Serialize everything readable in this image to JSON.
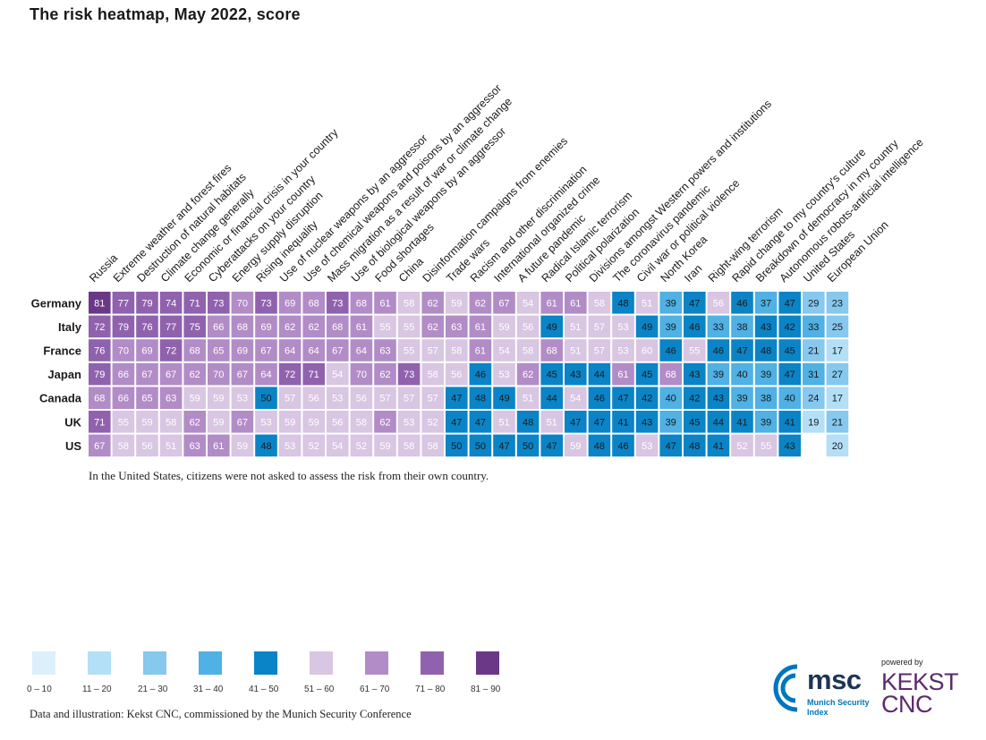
{
  "title": "The risk heatmap, May 2022, score",
  "note": "In the United States, citizens were not asked to assess the risk from their own country.",
  "source": "Data and illustration: Kekst CNC, commissioned by the Munich Security Conference",
  "powered_by": "powered by",
  "msc_logo": {
    "text": "msc",
    "sub1": "Munich Security",
    "sub2": "Index"
  },
  "kekst_logo": {
    "line1": "KEKST",
    "line2": "CNC"
  },
  "legend": [
    {
      "label": "0 – 10",
      "color": "#dceffb"
    },
    {
      "label": "11 – 20",
      "color": "#b3dff7"
    },
    {
      "label": "21 – 30",
      "color": "#86c8ee"
    },
    {
      "label": "31 – 40",
      "color": "#4fb1e4"
    },
    {
      "label": "41 – 50",
      "color": "#0a84c6"
    },
    {
      "label": "51 – 60",
      "color": "#d8c6e2"
    },
    {
      "label": "61 – 70",
      "color": "#b28cc6"
    },
    {
      "label": "71 – 80",
      "color": "#9062ae"
    },
    {
      "label": "81 – 90",
      "color": "#6b3888"
    }
  ],
  "chart_data": {
    "type": "heatmap",
    "title": "The risk heatmap, May 2022, score",
    "rows": [
      "Germany",
      "Italy",
      "France",
      "Japan",
      "Canada",
      "UK",
      "US"
    ],
    "columns": [
      "Russia",
      "Extreme weather and forest fires",
      "Destruction of natural habitats",
      "Climate change generally",
      "Economic or financial crisis in your country",
      "Cyberattacks on your country",
      "Energy supply disruption",
      "Rising inequality",
      "Use of nuclear weapons by an aggressor",
      "Use of chemical weapons and poisons by an aggressor",
      "Mass migration as a result of war or climate change",
      "Use of biological weapons by an aggressor",
      "Food shortages",
      "China",
      "Disinformation campaigns from enemies",
      "Trade wars",
      "Racism and other discrimination",
      "International organized crime",
      "A future pandemic",
      "Radical Islamic terrorism",
      "Political polarization",
      "Divisions amongst Western powers and institutions",
      "The coronavirus pandemic",
      "Civil war or political violence",
      "North Korea",
      "Iran",
      "Right-wing terrorism",
      "Rapid change to my country's culture",
      "Breakdown of democracy in my country",
      "Autonomous robots-artificial intelligence",
      "United States",
      "European Union"
    ],
    "values": [
      [
        81,
        77,
        79,
        74,
        71,
        73,
        70,
        73,
        69,
        68,
        73,
        68,
        61,
        58,
        62,
        59,
        62,
        67,
        54,
        61,
        61,
        58,
        48,
        51,
        39,
        47,
        56,
        46,
        37,
        47,
        29,
        23
      ],
      [
        72,
        79,
        76,
        77,
        75,
        66,
        68,
        69,
        62,
        62,
        68,
        61,
        55,
        55,
        62,
        63,
        61,
        59,
        56,
        49,
        51,
        57,
        53,
        49,
        39,
        46,
        33,
        38,
        43,
        42,
        33,
        25
      ],
      [
        76,
        70,
        69,
        72,
        68,
        65,
        69,
        67,
        64,
        64,
        67,
        64,
        63,
        55,
        57,
        58,
        61,
        54,
        58,
        68,
        51,
        57,
        53,
        60,
        46,
        55,
        46,
        47,
        48,
        45,
        21,
        17
      ],
      [
        79,
        66,
        67,
        67,
        62,
        70,
        67,
        64,
        72,
        71,
        54,
        70,
        62,
        73,
        58,
        56,
        46,
        53,
        62,
        45,
        43,
        44,
        61,
        45,
        68,
        43,
        39,
        40,
        39,
        47,
        31,
        27
      ],
      [
        68,
        66,
        65,
        63,
        59,
        59,
        53,
        50,
        57,
        56,
        53,
        56,
        57,
        57,
        57,
        47,
        48,
        49,
        51,
        44,
        54,
        46,
        47,
        42,
        40,
        42,
        43,
        39,
        38,
        40,
        24,
        17
      ],
      [
        71,
        55,
        59,
        58,
        62,
        59,
        67,
        53,
        59,
        59,
        56,
        58,
        62,
        53,
        52,
        47,
        47,
        51,
        48,
        51,
        47,
        47,
        41,
        43,
        39,
        45,
        44,
        41,
        39,
        41,
        19,
        21
      ],
      [
        67,
        58,
        56,
        51,
        63,
        61,
        59,
        48,
        53,
        52,
        54,
        52,
        59,
        58,
        58,
        50,
        50,
        47,
        50,
        47,
        59,
        48,
        46,
        53,
        47,
        48,
        41,
        52,
        55,
        43,
        null,
        20
      ]
    ]
  }
}
